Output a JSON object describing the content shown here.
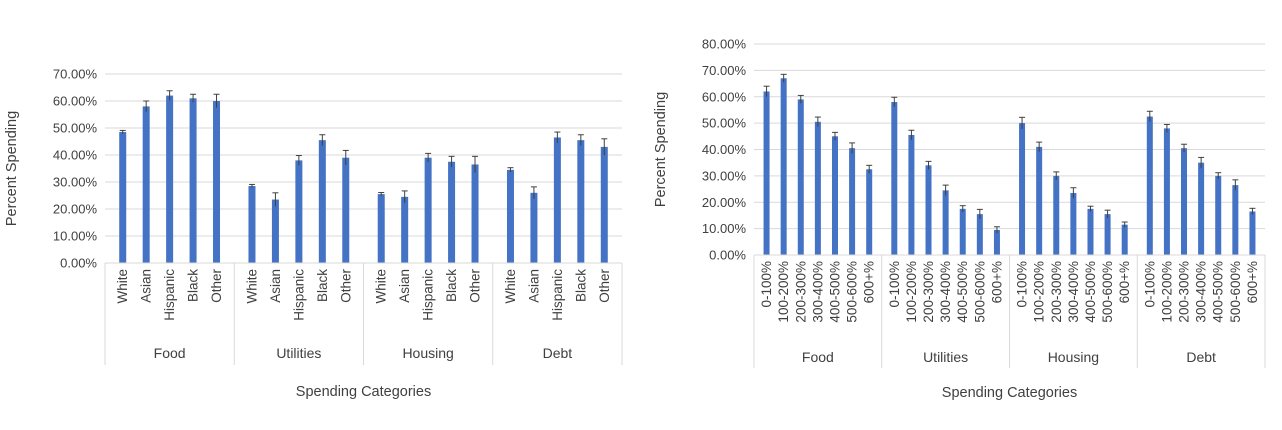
{
  "colors": {
    "bar": "#4472c4",
    "grid": "#d9d9d9",
    "text": "#404040",
    "error": "#404040"
  },
  "chart_data": [
    {
      "type": "bar",
      "xlabel": "Spending Categories",
      "ylabel": "Percent Spending",
      "ylim": [
        0,
        0.7
      ],
      "yticks": [
        0,
        0.1,
        0.2,
        0.3,
        0.4,
        0.5,
        0.6,
        0.7
      ],
      "ytick_labels": [
        "0.00%",
        "10.00%",
        "20.00%",
        "30.00%",
        "40.00%",
        "50.00%",
        "60.00%",
        "70.00%"
      ],
      "grid": true,
      "groups": [
        {
          "name": "Food",
          "categories": [
            "White",
            "Asian",
            "Hispanic",
            "Black",
            "Other"
          ],
          "values": [
            0.485,
            0.58,
            0.62,
            0.61,
            0.6
          ],
          "errors": [
            0.006,
            0.02,
            0.018,
            0.015,
            0.025
          ]
        },
        {
          "name": "Utilities",
          "categories": [
            "White",
            "Asian",
            "Hispanic",
            "Black",
            "Other"
          ],
          "values": [
            0.285,
            0.235,
            0.38,
            0.455,
            0.39
          ],
          "errors": [
            0.006,
            0.025,
            0.018,
            0.02,
            0.027
          ]
        },
        {
          "name": "Housing",
          "categories": [
            "White",
            "Asian",
            "Hispanic",
            "Black",
            "Other"
          ],
          "values": [
            0.255,
            0.245,
            0.39,
            0.375,
            0.365
          ],
          "errors": [
            0.006,
            0.022,
            0.016,
            0.02,
            0.03
          ]
        },
        {
          "name": "Debt",
          "categories": [
            "White",
            "Asian",
            "Hispanic",
            "Black",
            "Other"
          ],
          "values": [
            0.345,
            0.26,
            0.465,
            0.455,
            0.43
          ],
          "errors": [
            0.008,
            0.022,
            0.02,
            0.02,
            0.03
          ]
        }
      ]
    },
    {
      "type": "bar",
      "xlabel": "Spending Categories",
      "ylabel": "Percent Spending",
      "ylim": [
        0,
        0.8
      ],
      "yticks": [
        0,
        0.1,
        0.2,
        0.3,
        0.4,
        0.5,
        0.6,
        0.7,
        0.8
      ],
      "ytick_labels": [
        "0.00%",
        "10.00%",
        "20.00%",
        "30.00%",
        "40.00%",
        "50.00%",
        "60.00%",
        "70.00%",
        "80.00%"
      ],
      "grid": true,
      "groups": [
        {
          "name": "Food",
          "categories": [
            "0-100%",
            "100-200%",
            "200-300%",
            "300-400%",
            "400-500%",
            "500-600%",
            "600+%"
          ],
          "values": [
            0.62,
            0.67,
            0.59,
            0.505,
            0.45,
            0.405,
            0.325
          ],
          "errors": [
            0.02,
            0.015,
            0.015,
            0.018,
            0.015,
            0.02,
            0.015
          ]
        },
        {
          "name": "Utilities",
          "categories": [
            "0-100%",
            "100-200%",
            "200-300%",
            "300-400%",
            "400-500%",
            "500-600%",
            "600+%"
          ],
          "values": [
            0.58,
            0.455,
            0.34,
            0.245,
            0.175,
            0.155,
            0.095
          ],
          "errors": [
            0.018,
            0.018,
            0.015,
            0.02,
            0.012,
            0.018,
            0.012
          ]
        },
        {
          "name": "Housing",
          "categories": [
            "0-100%",
            "100-200%",
            "200-300%",
            "300-400%",
            "400-500%",
            "500-600%",
            "600+%"
          ],
          "values": [
            0.5,
            0.41,
            0.3,
            0.235,
            0.175,
            0.155,
            0.115
          ],
          "errors": [
            0.022,
            0.018,
            0.015,
            0.02,
            0.01,
            0.015,
            0.01
          ]
        },
        {
          "name": "Debt",
          "categories": [
            "0-100%",
            "100-200%",
            "200-300%",
            "300-400%",
            "400-500%",
            "500-600%",
            "600+%"
          ],
          "values": [
            0.525,
            0.48,
            0.405,
            0.35,
            0.3,
            0.265,
            0.165
          ],
          "errors": [
            0.02,
            0.015,
            0.015,
            0.02,
            0.012,
            0.02,
            0.012
          ]
        }
      ]
    }
  ]
}
